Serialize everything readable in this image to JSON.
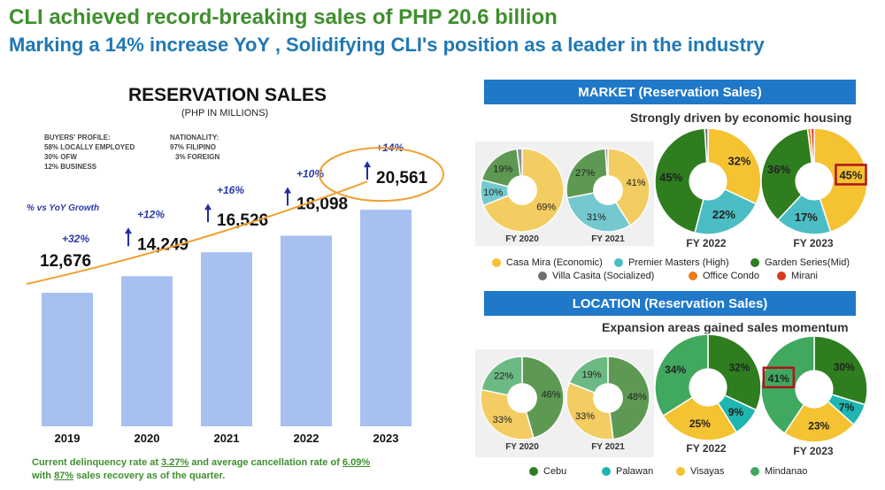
{
  "header": {
    "headline": "CLI achieved record-breaking sales of PHP 20.6 billion",
    "subheadline": "Marking a 14% increase YoY , Solidifying CLI's position as a leader in the industry"
  },
  "reservation": {
    "title": "RESERVATION SALES",
    "subtitle": "(PHP IN MILLIONS)",
    "buyers_title": "BUYERS' PROFILE:",
    "buyers": [
      "58%  LOCALLY EMPLOYED",
      "30%  OFW",
      "12%  BUSINESS"
    ],
    "nationality_title": "NATIONALITY:",
    "nationality": [
      "97% FILIPINO",
      "3% FOREIGN"
    ],
    "growth_label": "% vs YoY Growth",
    "footnote_parts": [
      "Current delinquency rate at ",
      "3.27%",
      " and average cancellation rate of ",
      "6.09%",
      "with ",
      "87%",
      " sales recovery as of the quarter."
    ]
  },
  "chart_data": [
    {
      "type": "bar",
      "categories": [
        "2019",
        "2020",
        "2021",
        "2022",
        "2023"
      ],
      "values": [
        12676,
        14249,
        16526,
        18098,
        20561
      ],
      "value_labels": [
        "12,676",
        "14,249",
        "16,526",
        "18,098",
        "20,561"
      ],
      "growth_labels": [
        "",
        "+12%",
        "+16%",
        "+10%",
        "+14%"
      ],
      "first_growth": "+32%",
      "title": "RESERVATION SALES",
      "ylabel": "",
      "ylim": [
        0,
        22000
      ],
      "bar_color": "#a7c0f0"
    },
    {
      "type": "pie",
      "group": "market",
      "title": "MARKET (Reservation Sales)",
      "caption": "Strongly driven by economic housing",
      "legend": [
        {
          "name": "Casa Mira (Economic)",
          "color": "#f5c232"
        },
        {
          "name": "Premier Masters (High)",
          "color": "#4bbdc4"
        },
        {
          "name": "Garden Series(Mid)",
          "color": "#2e7d1f"
        },
        {
          "name": "Villa Casita (Socialized)",
          "color": "#707070"
        },
        {
          "name": "Office Condo",
          "color": "#f07a18"
        },
        {
          "name": "Mirani",
          "color": "#d63a1a"
        }
      ],
      "pies": [
        {
          "label": "FY 2020",
          "slices": [
            {
              "name": "Casa Mira (Economic)",
              "value": 69,
              "label": "69%"
            },
            {
              "name": "Premier Masters (High)",
              "value": 10,
              "label": "10%"
            },
            {
              "name": "Garden Series(Mid)",
              "value": 19,
              "label": "19%"
            },
            {
              "name": "Villa Casita (Socialized)",
              "value": 2,
              "label": ""
            }
          ]
        },
        {
          "label": "FY 2021",
          "slices": [
            {
              "name": "Casa Mira (Economic)",
              "value": 41,
              "label": "41%"
            },
            {
              "name": "Premier Masters (High)",
              "value": 31,
              "label": "31%"
            },
            {
              "name": "Garden Series(Mid)",
              "value": 27,
              "label": "27%"
            },
            {
              "name": "Villa Casita (Socialized)",
              "value": 1,
              "label": ""
            }
          ]
        },
        {
          "label": "FY 2022",
          "slices": [
            {
              "name": "Casa Mira (Economic)",
              "value": 32,
              "label": "32%"
            },
            {
              "name": "Premier Masters (High)",
              "value": 22,
              "label": "22%"
            },
            {
              "name": "Garden Series(Mid)",
              "value": 45,
              "label": "45%"
            },
            {
              "name": "Villa Casita (Socialized)",
              "value": 1,
              "label": ""
            }
          ]
        },
        {
          "label": "FY 2023",
          "slices": [
            {
              "name": "Casa Mira (Economic)",
              "value": 45,
              "label": "45%",
              "highlight": true
            },
            {
              "name": "Premier Masters (High)",
              "value": 17,
              "label": "17%"
            },
            {
              "name": "Garden Series(Mid)",
              "value": 36,
              "label": "36%"
            },
            {
              "name": "Office Condo",
              "value": 1,
              "label": ""
            },
            {
              "name": "Mirani",
              "value": 1,
              "label": ""
            }
          ]
        }
      ]
    },
    {
      "type": "pie",
      "group": "location",
      "title": "LOCATION (Reservation Sales)",
      "caption": "Expansion areas gained sales momentum",
      "legend": [
        {
          "name": "Cebu",
          "color": "#2e7d1f"
        },
        {
          "name": "Palawan",
          "color": "#1fb5b0"
        },
        {
          "name": "Visayas",
          "color": "#f5c232"
        },
        {
          "name": "Mindanao",
          "color": "#41a85f"
        }
      ],
      "pies": [
        {
          "label": "FY 2020",
          "slices": [
            {
              "name": "Cebu",
              "value": 46,
              "label": "46%"
            },
            {
              "name": "Visayas",
              "value": 33,
              "label": "33%"
            },
            {
              "name": "Mindanao",
              "value": 22,
              "label": "22%"
            }
          ]
        },
        {
          "label": "FY 2021",
          "slices": [
            {
              "name": "Cebu",
              "value": 48,
              "label": "48%"
            },
            {
              "name": "Visayas",
              "value": 33,
              "label": "33%"
            },
            {
              "name": "Mindanao",
              "value": 19,
              "label": "19%"
            }
          ]
        },
        {
          "label": "FY 2022",
          "slices": [
            {
              "name": "Cebu",
              "value": 32,
              "label": "32%"
            },
            {
              "name": "Palawan",
              "value": 9,
              "label": "9%"
            },
            {
              "name": "Visayas",
              "value": 25,
              "label": "25%"
            },
            {
              "name": "Mindanao",
              "value": 34,
              "label": "34%"
            }
          ]
        },
        {
          "label": "FY 2023",
          "slices": [
            {
              "name": "Cebu",
              "value": 30,
              "label": "30%"
            },
            {
              "name": "Palawan",
              "value": 7,
              "label": "7%"
            },
            {
              "name": "Visayas",
              "value": 23,
              "label": "23%"
            },
            {
              "name": "Mindanao",
              "value": 41,
              "label": "41%",
              "highlight": true
            }
          ]
        }
      ]
    }
  ]
}
